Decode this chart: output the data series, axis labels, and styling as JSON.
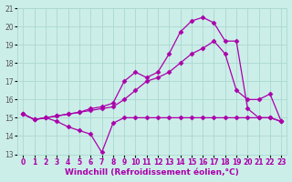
{
  "xlabel": "Windchill (Refroidissement éolien,°C)",
  "xlim": [
    -0.5,
    23.5
  ],
  "ylim": [
    13,
    21
  ],
  "xticks": [
    0,
    1,
    2,
    3,
    4,
    5,
    6,
    7,
    8,
    9,
    10,
    11,
    12,
    13,
    14,
    15,
    16,
    17,
    18,
    19,
    20,
    21,
    22,
    23
  ],
  "yticks": [
    13,
    14,
    15,
    16,
    17,
    18,
    19,
    20,
    21
  ],
  "background_color": "#cceee8",
  "grid_color": "#aad8d0",
  "line_color": "#aa00aa",
  "series": [
    {
      "x": [
        0,
        1,
        2,
        3,
        4,
        5,
        6,
        7,
        8,
        9,
        10,
        11,
        12,
        13,
        14,
        15,
        16,
        17,
        18,
        19,
        20,
        21,
        22,
        23
      ],
      "y": [
        15.2,
        14.9,
        15.0,
        14.8,
        14.5,
        14.3,
        14.1,
        13.1,
        14.7,
        15.0,
        15.0,
        15.0,
        15.0,
        15.0,
        15.0,
        15.0,
        15.0,
        15.0,
        15.0,
        15.0,
        15.0,
        15.0,
        15.0,
        14.8
      ]
    },
    {
      "x": [
        0,
        1,
        2,
        3,
        4,
        5,
        6,
        7,
        8,
        9,
        10,
        11,
        12,
        13,
        14,
        15,
        16,
        17,
        18,
        19,
        20,
        21,
        22,
        23
      ],
      "y": [
        15.2,
        14.9,
        15.0,
        15.1,
        15.2,
        15.3,
        15.4,
        15.5,
        15.6,
        16.0,
        16.5,
        17.0,
        17.2,
        17.5,
        18.0,
        18.5,
        18.8,
        19.2,
        18.5,
        16.5,
        16.0,
        16.0,
        16.3,
        14.8
      ]
    },
    {
      "x": [
        0,
        1,
        2,
        3,
        4,
        5,
        6,
        7,
        8,
        9,
        10,
        11,
        12,
        13,
        14,
        15,
        16,
        17,
        18,
        19,
        20,
        21,
        22,
        23
      ],
      "y": [
        15.2,
        14.9,
        15.0,
        15.1,
        15.2,
        15.3,
        15.5,
        15.6,
        15.8,
        17.0,
        17.5,
        17.2,
        17.5,
        18.5,
        19.7,
        20.3,
        20.5,
        20.2,
        19.2,
        19.2,
        15.5,
        15.0,
        15.0,
        14.8
      ]
    }
  ],
  "marker": "D",
  "markersize": 2.5,
  "linewidth": 0.9,
  "tick_fontsize": 5.5,
  "label_fontsize": 6.5
}
